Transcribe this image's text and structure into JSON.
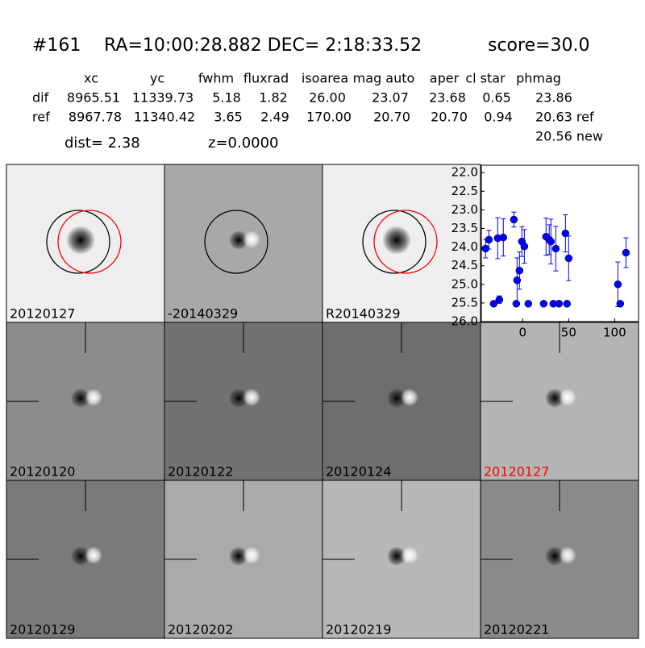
{
  "header": {
    "id": "#161",
    "coords": "RA=10:00:28.882 DEC= 2:18:33.52",
    "score": "score=30.0"
  },
  "table": {
    "columns": [
      "xc",
      "yc",
      "fwhm",
      "fluxrad",
      "isoarea",
      "mag auto",
      "aper",
      "cl star",
      "phmag"
    ],
    "rows": [
      [
        "dif",
        "8965.51",
        "11339.73",
        "5.18",
        "1.82",
        "26.00",
        "23.07",
        "23.68",
        "0.65",
        "23.86"
      ],
      [
        "ref",
        "8967.78",
        "11340.42",
        "3.65",
        "2.49",
        "170.00",
        "20.70",
        "20.70",
        "0.94",
        "20.63 ref"
      ]
    ],
    "extra": "20.56 new"
  },
  "dist": "dist=  2.38",
  "z": "z=0.0000",
  "stamps": [
    "20120127",
    "-20140329",
    "R20140329",
    "20120120",
    "20120122",
    "20120124",
    "20120127",
    "20120129",
    "20120202",
    "20120219",
    "20120221"
  ],
  "chart_data": {
    "type": "scatter",
    "y_inverted": true,
    "xlim": [
      -45,
      126
    ],
    "ylim": [
      21.8,
      26
    ],
    "xticks": [
      0,
      50,
      100
    ],
    "yticks": [
      {
        "value": 22,
        "label": "22.0"
      },
      {
        "value": 22.5,
        "label": "22.5"
      },
      {
        "value": 23,
        "label": "23.0"
      },
      {
        "value": 23.5,
        "label": "23.5"
      },
      {
        "value": 24,
        "label": "24.0"
      },
      {
        "value": 24.5,
        "label": "24.5"
      },
      {
        "value": 25,
        "label": "25.0"
      },
      {
        "value": 25.5,
        "label": "25.5"
      },
      {
        "value": 26,
        "label": "26.0"
      }
    ],
    "series": [
      {
        "color": "#0000ff",
        "x": [
          -40.4,
          -36.8,
          -31.6,
          -27.2,
          -25.4,
          -21.1,
          -9.6,
          -7.0,
          -6.1,
          -3.5,
          -0.9,
          1.8,
          6.1,
          22.8,
          25.4,
          28.9,
          30.7,
          33.3,
          36.0,
          39.5,
          46.5,
          48.2,
          50.0,
          103.5,
          106.1,
          112.3
        ],
        "values": [
          24.04,
          23.8,
          25.52,
          23.76,
          25.41,
          23.74,
          23.26,
          25.52,
          24.89,
          24.63,
          23.85,
          23.98,
          25.52,
          25.52,
          23.72,
          23.8,
          23.85,
          25.52,
          24.04,
          25.52,
          23.63,
          25.52,
          24.3,
          25.0,
          25.52,
          24.15
        ],
        "errors": [
          0.25,
          0.25,
          0.05,
          0.55,
          0.1,
          0.5,
          0.2,
          0.05,
          0.6,
          0.5,
          0.4,
          0.45,
          0.05,
          0.05,
          0.5,
          0.4,
          0.6,
          0.05,
          0.6,
          0.05,
          0.5,
          0.05,
          0.6,
          0.6,
          0.05,
          0.4
        ]
      }
    ]
  }
}
